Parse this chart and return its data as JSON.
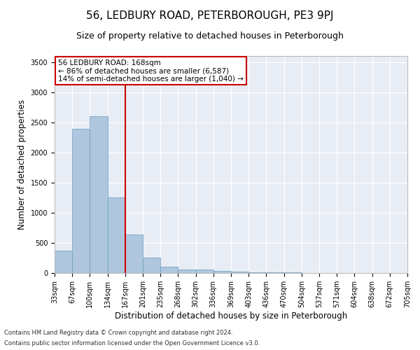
{
  "title1": "56, LEDBURY ROAD, PETERBOROUGH, PE3 9PJ",
  "title2": "Size of property relative to detached houses in Peterborough",
  "xlabel": "Distribution of detached houses by size in Peterborough",
  "ylabel": "Number of detached properties",
  "footnote1": "Contains HM Land Registry data © Crown copyright and database right 2024.",
  "footnote2": "Contains public sector information licensed under the Open Government Licence v3.0.",
  "annotation_line1": "56 LEDBURY ROAD: 168sqm",
  "annotation_line2": "← 86% of detached houses are smaller (6,587)",
  "annotation_line3": "14% of semi-detached houses are larger (1,040) →",
  "bar_values": [
    375,
    2390,
    2600,
    1250,
    640,
    260,
    100,
    60,
    55,
    40,
    25,
    15,
    10,
    8,
    5,
    4,
    3,
    2,
    2,
    1
  ],
  "bar_labels": [
    "33sqm",
    "67sqm",
    "100sqm",
    "134sqm",
    "167sqm",
    "201sqm",
    "235sqm",
    "268sqm",
    "302sqm",
    "336sqm",
    "369sqm",
    "403sqm",
    "436sqm",
    "470sqm",
    "504sqm",
    "537sqm",
    "571sqm",
    "604sqm",
    "638sqm",
    "672sqm",
    "705sqm"
  ],
  "bar_color": "#aec6de",
  "bar_edge_color": "#6a9fc0",
  "vline_x": 4,
  "vline_color": "#cc0000",
  "annotation_box_color": "#cc0000",
  "ylim": [
    0,
    3600
  ],
  "yticks": [
    0,
    500,
    1000,
    1500,
    2000,
    2500,
    3000,
    3500
  ],
  "bg_color": "#e8edf5",
  "grid_color": "#ffffff",
  "title1_fontsize": 11,
  "title2_fontsize": 9,
  "xlabel_fontsize": 8.5,
  "ylabel_fontsize": 8.5,
  "tick_fontsize": 7,
  "annotation_fontsize": 7.5,
  "footnote_fontsize": 6
}
